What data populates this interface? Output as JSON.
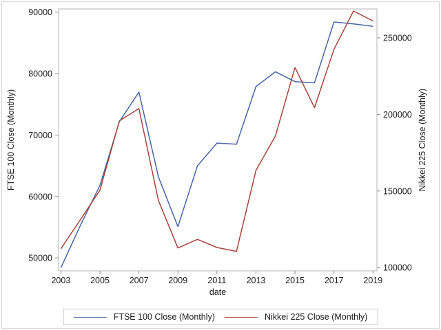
{
  "figure": {
    "background": "#ffffff",
    "border_color": "#d4d4d4",
    "frame_color": "#b3b3b3",
    "tick_color": "#8c8c8c",
    "text_color": "#1a1a1a"
  },
  "chart_data": {
    "type": "line",
    "title": "",
    "xlabel": "date",
    "x_ticks": [
      2003,
      2005,
      2007,
      2009,
      2011,
      2013,
      2015,
      2017,
      2019
    ],
    "x_range": [
      2002.88,
      2019.2
    ],
    "grid": false,
    "legend_position": "bottom",
    "left_axis": {
      "label": "FTSE 100 Close (Monthly)",
      "ticks": [
        50000,
        60000,
        70000,
        80000,
        90000
      ],
      "range": [
        47890,
        90530
      ]
    },
    "right_axis": {
      "label": "Nikkei 225 Close (Monthly)",
      "ticks": [
        100000,
        150000,
        200000,
        250000
      ],
      "range": [
        97840,
        268850
      ]
    },
    "x": [
      2003,
      2004,
      2005,
      2006,
      2007,
      2008,
      2009,
      2010,
      2011,
      2012,
      2013,
      2014,
      2015,
      2016,
      2017,
      2018,
      2019
    ],
    "series": [
      {
        "name": "FTSE 100 Close (Monthly)",
        "axis": "left",
        "color": "#4766a6",
        "values": [
          48400,
          55300,
          61800,
          72200,
          77000,
          63200,
          55100,
          65000,
          68700,
          68500,
          77900,
          80300,
          78700,
          78500,
          88400,
          88100,
          87700
        ]
      },
      {
        "name": "Nikkei 225 Close (Monthly)",
        "axis": "right",
        "color": "#a8423a",
        "values": [
          112300,
          131300,
          150500,
          195800,
          203800,
          143800,
          112800,
          118400,
          113100,
          110600,
          163500,
          186000,
          230600,
          204400,
          242500,
          267500,
          261000
        ]
      }
    ]
  }
}
